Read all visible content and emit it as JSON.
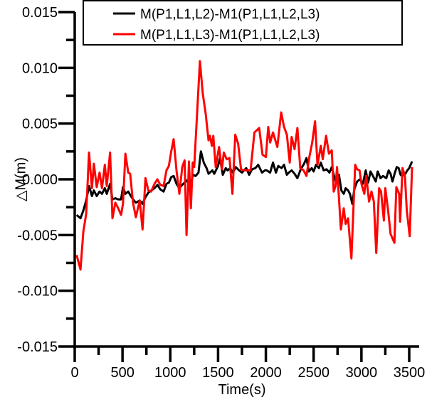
{
  "chart_data": {
    "type": "line",
    "title": "",
    "xlabel": "Time(s)",
    "ylabel": "△M(m)",
    "xlim": [
      0,
      3600
    ],
    "ylim": [
      -0.015,
      0.015
    ],
    "x_ticks": [
      0,
      500,
      1000,
      1500,
      2000,
      2500,
      3000,
      3500
    ],
    "x_tick_labels": [
      "0",
      "500",
      "1000",
      "1500",
      "2000",
      "2500",
      "3000",
      "3500"
    ],
    "y_ticks": [
      -0.015,
      -0.01,
      -0.005,
      0.0,
      0.005,
      0.01,
      0.015
    ],
    "y_tick_labels": [
      "-0.015",
      "-0.010",
      "-0.005",
      "0.000",
      "0.005",
      "0.010",
      "0.015"
    ],
    "grid": false,
    "legend_position": "top-right",
    "series": [
      {
        "name": "M(P1,L1,L2)-M1(P1,L1,L2,L3)",
        "color": "#000000",
        "points": [
          [
            20,
            -0.0032
          ],
          [
            60,
            -0.0035
          ],
          [
            90,
            -0.0028
          ],
          [
            120,
            -0.0019
          ],
          [
            150,
            -0.0006
          ],
          [
            180,
            -0.0015
          ],
          [
            200,
            -0.001
          ],
          [
            230,
            -0.0015
          ],
          [
            260,
            -0.0011
          ],
          [
            285,
            -0.0013
          ],
          [
            315,
            -0.0008
          ],
          [
            335,
            -0.0013
          ],
          [
            370,
            -0.0004
          ],
          [
            395,
            -0.0018
          ],
          [
            425,
            -0.0017
          ],
          [
            455,
            -0.0018
          ],
          [
            485,
            -0.0018
          ],
          [
            505,
            -0.0007
          ],
          [
            530,
            -0.0013
          ],
          [
            560,
            -0.0011
          ],
          [
            580,
            -0.0014
          ],
          [
            610,
            -0.0018
          ],
          [
            640,
            -0.0021
          ],
          [
            680,
            -0.0019
          ],
          [
            710,
            -0.0022
          ],
          [
            740,
            -0.0016
          ],
          [
            770,
            -0.0012
          ],
          [
            800,
            -0.001
          ],
          [
            835,
            -0.0008
          ],
          [
            865,
            -0.0005
          ],
          [
            895,
            -0.0009
          ],
          [
            930,
            -0.0011
          ],
          [
            960,
            -0.0004
          ],
          [
            985,
            -0.0003
          ],
          [
            1010,
            0.0002
          ],
          [
            1035,
            0.0003
          ],
          [
            1065,
            -0.0004
          ],
          [
            1095,
            -0.0008
          ],
          [
            1125,
            -0.0005
          ],
          [
            1150,
            -0.0003
          ],
          [
            1170,
            -0.0001
          ],
          [
            1215,
            -0.0006
          ],
          [
            1235,
            0.0004
          ],
          [
            1265,
            0.0003
          ],
          [
            1295,
            0.0006
          ],
          [
            1320,
            0.0025
          ],
          [
            1350,
            0.0015
          ],
          [
            1380,
            0.001
          ],
          [
            1400,
            0.0005
          ],
          [
            1440,
            0.0008
          ],
          [
            1460,
            0.0005
          ],
          [
            1500,
            0.0012
          ],
          [
            1520,
            0.0019
          ],
          [
            1550,
            0.0004
          ],
          [
            1580,
            0.001
          ],
          [
            1600,
            0.0008
          ],
          [
            1625,
            0.001
          ],
          [
            1655,
            0.0006
          ],
          [
            1685,
            0.0011
          ],
          [
            1720,
            0.0008
          ],
          [
            1750,
            0.0006
          ],
          [
            1795,
            0.001
          ],
          [
            1825,
            0.0004
          ],
          [
            1855,
            0.0009
          ],
          [
            1890,
            0.001
          ],
          [
            1920,
            0.0013
          ],
          [
            1960,
            0.0006
          ],
          [
            1990,
            0.0008
          ],
          [
            2010,
            0.0008
          ],
          [
            2045,
            0.0006
          ],
          [
            2075,
            0.0015
          ],
          [
            2105,
            0.0006
          ],
          [
            2130,
            0.0012
          ],
          [
            2165,
            0.001
          ],
          [
            2190,
            0.0013
          ],
          [
            2220,
            0.0004
          ],
          [
            2240,
            0.0006
          ],
          [
            2270,
            0.0008
          ],
          [
            2300,
            0.0005
          ],
          [
            2330,
            0.0001
          ],
          [
            2365,
            0.0009
          ],
          [
            2400,
            0.0014
          ],
          [
            2425,
            0.0019
          ],
          [
            2450,
            0.0007
          ],
          [
            2480,
            0.001
          ],
          [
            2500,
            0.0007
          ],
          [
            2525,
            0.0013
          ],
          [
            2555,
            0.001
          ],
          [
            2575,
            0.0015
          ],
          [
            2605,
            0.0008
          ],
          [
            2635,
            0.0009
          ],
          [
            2665,
            0.0006
          ],
          [
            2690,
            0.0011
          ],
          [
            2710,
            0.0004
          ],
          [
            2735,
            -0.0003
          ],
          [
            2765,
            0.0004
          ],
          [
            2790,
            -0.001
          ],
          [
            2815,
            -0.0013
          ],
          [
            2835,
            -0.0008
          ],
          [
            2860,
            -0.001
          ],
          [
            2880,
            -0.0013
          ],
          [
            2905,
            -0.0022
          ],
          [
            2925,
            -0.0009
          ],
          [
            2955,
            -0.0002
          ],
          [
            2985,
            0.0
          ],
          [
            3015,
            -0.0004
          ],
          [
            3045,
            0.0008
          ],
          [
            3070,
            -0.0003
          ],
          [
            3095,
            0.0007
          ],
          [
            3120,
            0.0003
          ],
          [
            3150,
            -0.0002
          ],
          [
            3170,
            0.0007
          ],
          [
            3200,
            0.0001
          ],
          [
            3225,
            0.0003
          ],
          [
            3260,
            0.0001
          ],
          [
            3285,
            0.0008
          ],
          [
            3305,
            0.0005
          ],
          [
            3325,
            -0.0002
          ],
          [
            3350,
            0.0006
          ],
          [
            3370,
            0.0011
          ],
          [
            3390,
            0.001
          ],
          [
            3410,
            0.0004
          ],
          [
            3425,
            0.0003
          ],
          [
            3460,
            0.0005
          ],
          [
            3480,
            0.0008
          ],
          [
            3500,
            0.001
          ],
          [
            3530,
            0.0016
          ]
        ]
      },
      {
        "name": "M(P1,L1,L3)-M1(P1,L1,L2,L3)",
        "color": "#ff0000",
        "points": [
          [
            20,
            -0.0068
          ],
          [
            60,
            -0.0081
          ],
          [
            90,
            -0.0047
          ],
          [
            120,
            -0.0031
          ],
          [
            150,
            0.0024
          ],
          [
            180,
            -0.0008
          ],
          [
            200,
            0.0014
          ],
          [
            230,
            -0.0007
          ],
          [
            260,
            0.0006
          ],
          [
            285,
            -0.0008
          ],
          [
            315,
            0.0013
          ],
          [
            335,
            -0.0006
          ],
          [
            370,
            0.0024
          ],
          [
            395,
            -0.0035
          ],
          [
            425,
            -0.0021
          ],
          [
            455,
            -0.0026
          ],
          [
            485,
            -0.0032
          ],
          [
            505,
            -0.0022
          ],
          [
            530,
            0.0023
          ],
          [
            560,
            0.0006
          ],
          [
            580,
            0.0005
          ],
          [
            610,
            -0.0021
          ],
          [
            640,
            -0.0034
          ],
          [
            680,
            -0.0019
          ],
          [
            710,
            -0.0045
          ],
          [
            740,
            0.0001
          ],
          [
            770,
            -0.001
          ],
          [
            800,
            -0.0011
          ],
          [
            835,
            -0.0004
          ],
          [
            865,
            -0.0
          ],
          [
            895,
            -0.0005
          ],
          [
            930,
            -0.0006
          ],
          [
            960,
            0.0008
          ],
          [
            985,
            0.0012
          ],
          [
            1010,
            0.0025
          ],
          [
            1035,
            0.0036
          ],
          [
            1065,
            0.0008
          ],
          [
            1095,
            -0.0013
          ],
          [
            1125,
            0.0011
          ],
          [
            1150,
            0.0017
          ],
          [
            1170,
            -0.005
          ],
          [
            1195,
            0.0016
          ],
          [
            1215,
            -0.0026
          ],
          [
            1235,
            0.0015
          ],
          [
            1250,
            0.0011
          ],
          [
            1310,
            0.0106
          ],
          [
            1340,
            0.0077
          ],
          [
            1370,
            0.0059
          ],
          [
            1400,
            0.0035
          ],
          [
            1415,
            0.0039
          ],
          [
            1435,
            0.003
          ],
          [
            1450,
            0.0039
          ],
          [
            1475,
            0.0011
          ],
          [
            1510,
            0.0029
          ],
          [
            1540,
            0.0009
          ],
          [
            1560,
            0.0024
          ],
          [
            1590,
            0.0018
          ],
          [
            1620,
            0.0019
          ],
          [
            1650,
            -0.0013
          ],
          [
            1680,
            0.004
          ],
          [
            1710,
            0.0032
          ],
          [
            1740,
            0.0009
          ],
          [
            1770,
            0.0008
          ],
          [
            1800,
            0.0008
          ],
          [
            1840,
            0.0008
          ],
          [
            1880,
            0.0042
          ],
          [
            1930,
            0.0046
          ],
          [
            1965,
            0.0022
          ],
          [
            2000,
            0.002
          ],
          [
            2025,
            0.0047
          ],
          [
            2045,
            0.0033
          ],
          [
            2075,
            0.0042
          ],
          [
            2120,
            0.0029
          ],
          [
            2160,
            0.006
          ],
          [
            2190,
            0.0047
          ],
          [
            2220,
            0.004
          ],
          [
            2250,
            0.0015
          ],
          [
            2270,
            0.0038
          ],
          [
            2300,
            0.0027
          ],
          [
            2330,
            0.0046
          ],
          [
            2360,
            0.001
          ],
          [
            2395,
            0.0008
          ],
          [
            2425,
            0.0003
          ],
          [
            2455,
            0.002
          ],
          [
            2485,
            0.0033
          ],
          [
            2515,
            0.0052
          ],
          [
            2540,
            0.0013
          ],
          [
            2575,
            0.003
          ],
          [
            2595,
            0.0018
          ],
          [
            2630,
            0.0039
          ],
          [
            2660,
            0.0023
          ],
          [
            2690,
            0.0026
          ],
          [
            2710,
            -0.0011
          ],
          [
            2730,
            -0.0006
          ],
          [
            2745,
            0.0011
          ],
          [
            2785,
            -0.0045
          ],
          [
            2815,
            -0.0026
          ],
          [
            2835,
            -0.004
          ],
          [
            2860,
            -0.0035
          ],
          [
            2895,
            -0.0071
          ],
          [
            2935,
            0.0013
          ],
          [
            2955,
            0.0009
          ],
          [
            2980,
            0.0008
          ],
          [
            3000,
            -0.0004
          ],
          [
            3030,
            -0.0013
          ],
          [
            3050,
            0.0003
          ],
          [
            3080,
            -0.002
          ],
          [
            3105,
            -0.0011
          ],
          [
            3130,
            -0.002
          ],
          [
            3155,
            -0.0066
          ],
          [
            3185,
            -0.0008
          ],
          [
            3205,
            -0.0011
          ],
          [
            3235,
            -0.0037
          ],
          [
            3250,
            -0.0008
          ],
          [
            3280,
            -0.0029
          ],
          [
            3305,
            -0.0049
          ],
          [
            3345,
            -0.0057
          ],
          [
            3365,
            -0.0007
          ],
          [
            3395,
            -0.0013
          ],
          [
            3405,
            -0.0038
          ],
          [
            3430,
            0.001
          ],
          [
            3455,
            0.0003
          ],
          [
            3475,
            -0.0028
          ],
          [
            3505,
            -0.0051
          ],
          [
            3530,
            0.0011
          ]
        ]
      }
    ]
  },
  "legend": {
    "entries": [
      {
        "label": "M(P1,L1,L2)-M1(P1,L1,L2,L3)",
        "color": "#000000"
      },
      {
        "label": "M(P1,L1,L3)-M1(P1,L1,L2,L3)",
        "color": "#ff0000"
      }
    ]
  },
  "axes": {
    "x_title": "Time(s)",
    "y_title": "△M(m)"
  }
}
